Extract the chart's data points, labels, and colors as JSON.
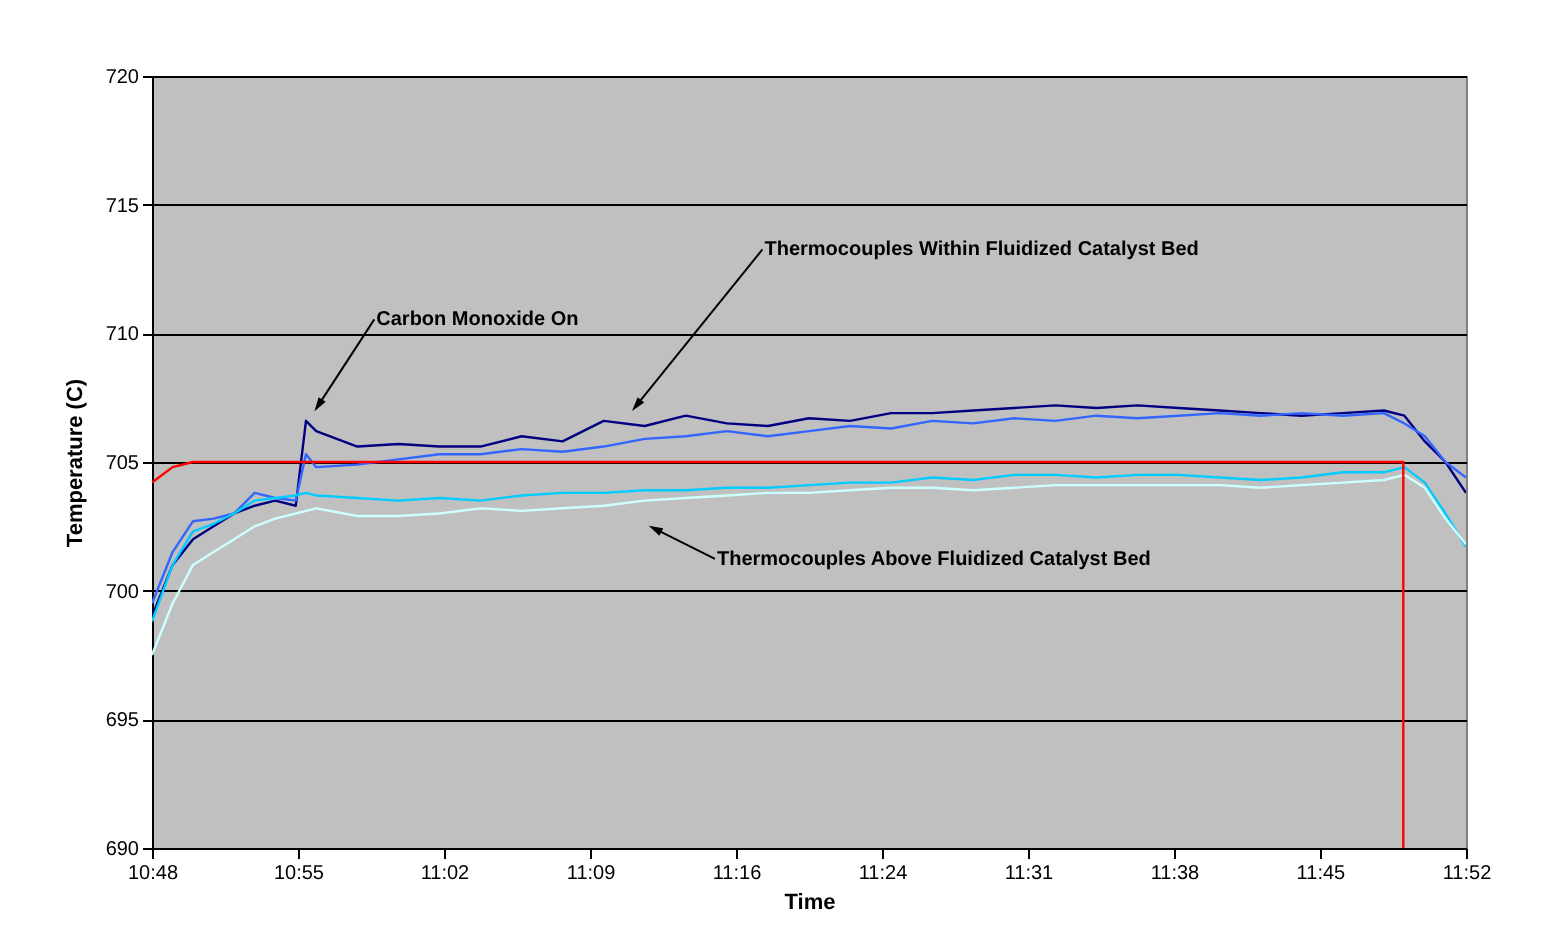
{
  "chart_data": {
    "type": "line",
    "xlabel": "Time",
    "ylabel": "Temperature (C)",
    "grid": "y",
    "x": [
      10.8,
      10.8167,
      10.8333,
      10.85,
      10.8667,
      10.8833,
      10.9,
      10.9167,
      10.925,
      10.9333,
      10.9667,
      11,
      11.0333,
      11.0667,
      11.1,
      11.1333,
      11.1667,
      11.2,
      11.2333,
      11.2667,
      11.3,
      11.3333,
      11.3667,
      11.4,
      11.4333,
      11.4667,
      11.5,
      11.5333,
      11.5667,
      11.6,
      11.6333,
      11.6667,
      11.7,
      11.7333,
      11.7667,
      11.8,
      11.8167,
      11.8333,
      11.85,
      11.8667
    ],
    "xlim": [
      10.8,
      11.8667
    ],
    "xticks": [
      {
        "value": 10.8,
        "label": "10:48"
      },
      {
        "value": 10.9185,
        "label": "10:55"
      },
      {
        "value": 11.037,
        "label": "11:02"
      },
      {
        "value": 11.1556,
        "label": "11:09"
      },
      {
        "value": 11.2741,
        "label": "11:16"
      },
      {
        "value": 11.3926,
        "label": "11:24"
      },
      {
        "value": 11.5111,
        "label": "11:31"
      },
      {
        "value": 11.6296,
        "label": "11:38"
      },
      {
        "value": 11.7481,
        "label": "11:45"
      },
      {
        "value": 11.8667,
        "label": "11:52"
      }
    ],
    "ylim": [
      690,
      720
    ],
    "yticks": [
      690,
      695,
      700,
      705,
      710,
      715,
      720
    ],
    "series": [
      {
        "color": "#000080",
        "values": [
          699,
          701,
          702,
          702.5,
          703,
          703.3,
          703.5,
          703.3,
          706.6,
          706.2,
          705.6,
          705.7,
          705.6,
          705.6,
          706,
          705.8,
          706.6,
          706.4,
          706.8,
          706.5,
          706.4,
          706.7,
          706.6,
          706.9,
          706.9,
          707,
          707.1,
          707.2,
          707.1,
          707.2,
          707.1,
          707,
          706.9,
          706.8,
          706.9,
          707,
          706.8,
          705.8,
          705,
          703.8
        ]
      },
      {
        "color": "#3366ff",
        "values": [
          699.5,
          701.5,
          702.7,
          702.8,
          703,
          703.8,
          703.6,
          703.5,
          705.3,
          704.8,
          704.9,
          705.1,
          705.3,
          705.3,
          705.5,
          705.4,
          705.6,
          705.9,
          706,
          706.2,
          706,
          706.2,
          706.4,
          706.3,
          706.6,
          706.5,
          706.7,
          706.6,
          706.8,
          706.7,
          706.8,
          706.9,
          706.8,
          706.9,
          706.8,
          706.9,
          706.5,
          706,
          705,
          704.4
        ]
      },
      {
        "color": "#00ccff",
        "values": [
          698.8,
          701,
          702.3,
          702.6,
          703,
          703.5,
          703.6,
          703.7,
          703.8,
          703.7,
          703.6,
          703.5,
          703.6,
          703.5,
          703.7,
          703.8,
          703.8,
          703.9,
          703.9,
          704,
          704,
          704.1,
          704.2,
          704.2,
          704.4,
          704.3,
          704.5,
          704.5,
          704.4,
          704.5,
          704.5,
          704.4,
          704.3,
          704.4,
          704.6,
          704.6,
          704.8,
          704.2,
          703,
          701.7
        ]
      },
      {
        "color": "#ccffff",
        "values": [
          697.5,
          699.5,
          701,
          701.5,
          702,
          702.5,
          702.8,
          703,
          703.1,
          703.2,
          702.9,
          702.9,
          703,
          703.2,
          703.1,
          703.2,
          703.3,
          703.5,
          703.6,
          703.7,
          703.8,
          703.8,
          703.9,
          704,
          704,
          703.9,
          704,
          704.1,
          704.1,
          704.1,
          704.1,
          704.1,
          704,
          704.1,
          704.2,
          704.3,
          704.5,
          704,
          702.8,
          701.8
        ]
      },
      {
        "color": "#ff0000",
        "x": [
          10.8,
          10.8167,
          10.8333,
          11.8158,
          11.8158
        ],
        "values": [
          704.2,
          704.8,
          705,
          705,
          690
        ]
      }
    ],
    "annotations": [
      {
        "text": "Carbon Monoxide On",
        "x": 10.935,
        "y": 707.2
      },
      {
        "text": "Thermocouples Within Fluidized Catalyst Bed",
        "x": 11.1933,
        "y": 707.2
      },
      {
        "text": "Thermocouples Above Fluidized Catalyst Bed",
        "x": 11.2083,
        "y": 702.4
      }
    ]
  }
}
